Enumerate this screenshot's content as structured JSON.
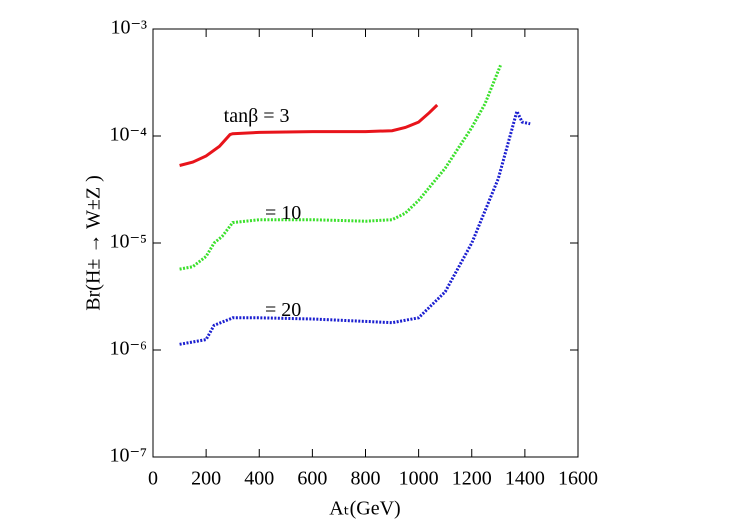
{
  "chart_data": {
    "type": "line",
    "x_label": "Aₜ(GeV)",
    "y_label": "Br(H± → W±Z )",
    "log_y": true,
    "xlim": [
      0,
      1600
    ],
    "xticks": [
      0,
      200,
      400,
      600,
      800,
      1000,
      1200,
      1400,
      1600
    ],
    "ylim": [
      1e-07,
      0.001
    ],
    "yticks": [
      {
        "value": 1e-07,
        "label": "10⁻⁷"
      },
      {
        "value": 1e-06,
        "label": "10⁻⁶"
      },
      {
        "value": 1e-05,
        "label": "10⁻⁵"
      },
      {
        "value": 0.0001,
        "label": "10⁻⁴"
      },
      {
        "value": 0.001,
        "label": "10⁻³"
      }
    ],
    "series": [
      {
        "color": "#e8141b",
        "style": "solid",
        "x": [
          100,
          150,
          200,
          250,
          290,
          300,
          400,
          600,
          800,
          900,
          950,
          1000,
          1040,
          1070
        ],
        "values": [
          5.3e-05,
          5.7e-05,
          6.5e-05,
          8e-05,
          0.000103,
          0.000105,
          0.000108,
          0.00011,
          0.00011,
          0.000112,
          0.00012,
          0.000135,
          0.000165,
          0.000195
        ]
      },
      {
        "color": "#3be02c",
        "style": "dotted",
        "x": [
          100,
          150,
          200,
          230,
          260,
          300,
          400,
          600,
          800,
          900,
          950,
          1000,
          1100,
          1200,
          1250,
          1310
        ],
        "values": [
          5.7e-06,
          6e-06,
          7.5e-06,
          1e-05,
          1.15e-05,
          1.55e-05,
          1.65e-05,
          1.65e-05,
          1.6e-05,
          1.65e-05,
          1.9e-05,
          2.5e-05,
          5e-05,
          0.00012,
          0.0002,
          0.00047
        ]
      },
      {
        "color": "#1b1fd0",
        "style": "dotted",
        "x": [
          100,
          200,
          230,
          290,
          300,
          400,
          600,
          800,
          900,
          1000,
          1100,
          1200,
          1300,
          1370,
          1390,
          1420
        ],
        "values": [
          1.13e-06,
          1.25e-06,
          1.7e-06,
          1.95e-06,
          2e-06,
          2e-06,
          1.95e-06,
          1.85e-06,
          1.8e-06,
          2e-06,
          3.5e-06,
          1e-05,
          4e-05,
          0.00017,
          0.000135,
          0.00013
        ]
      }
    ],
    "annotations": [
      {
        "text": "tanβ = 3",
        "x": 390,
        "y": 0.00015
      },
      {
        "text": "= 10",
        "x": 490,
        "y": 1.85e-05
      },
      {
        "text": "= 20",
        "x": 490,
        "y": 2.3e-06
      }
    ]
  }
}
